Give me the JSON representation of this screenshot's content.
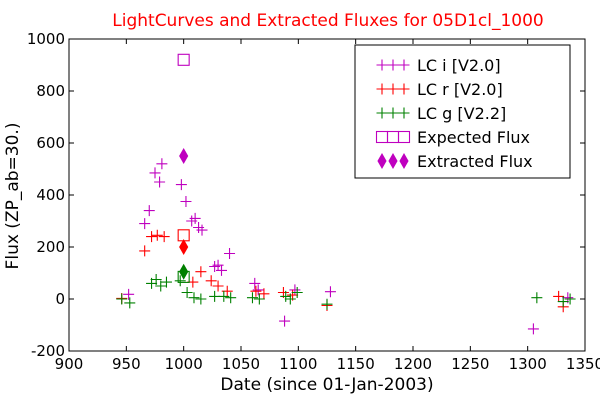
{
  "chart_data": {
    "type": "scatter",
    "title": "LightCurves and Extracted Fluxes for 05D1cl_1000",
    "xlabel": "Date (since 01-Jan-2003)",
    "ylabel": "Flux (ZP_ab=30.)",
    "xlim": [
      900,
      1350
    ],
    "ylim": [
      -200,
      1000
    ],
    "xticks": [
      900,
      950,
      1000,
      1050,
      1100,
      1150,
      1200,
      1250,
      1300,
      1350
    ],
    "yticks": [
      -200,
      0,
      200,
      400,
      600,
      800,
      1000
    ],
    "legend_position": "top-right",
    "series": [
      {
        "name": "LC i [V2.0]",
        "marker": "plus",
        "color": "#bf00bf",
        "points": [
          [
            952,
            18
          ],
          [
            966,
            290
          ],
          [
            970,
            340
          ],
          [
            975,
            485
          ],
          [
            979,
            450
          ],
          [
            981,
            520
          ],
          [
            998,
            440
          ],
          [
            1002,
            375
          ],
          [
            1007,
            300
          ],
          [
            1010,
            310
          ],
          [
            1013,
            275
          ],
          [
            1016,
            265
          ],
          [
            1027,
            125
          ],
          [
            1030,
            130
          ],
          [
            1033,
            110
          ],
          [
            1040,
            175
          ],
          [
            1062,
            60
          ],
          [
            1065,
            35
          ],
          [
            1088,
            -85
          ],
          [
            1097,
            35
          ],
          [
            1128,
            28
          ],
          [
            1305,
            -115
          ],
          [
            1335,
            5
          ]
        ]
      },
      {
        "name": "LC r [V2.0]",
        "marker": "plus",
        "color": "#ff0000",
        "points": [
          [
            946,
            2
          ],
          [
            966,
            185
          ],
          [
            972,
            240
          ],
          [
            977,
            245
          ],
          [
            983,
            240
          ],
          [
            1008,
            65
          ],
          [
            1015,
            105
          ],
          [
            1024,
            70
          ],
          [
            1030,
            50
          ],
          [
            1038,
            30
          ],
          [
            1063,
            30
          ],
          [
            1070,
            20
          ],
          [
            1087,
            25
          ],
          [
            1095,
            15
          ],
          [
            1125,
            -25
          ],
          [
            1327,
            10
          ],
          [
            1331,
            -30
          ]
        ]
      },
      {
        "name": "LC g [V2.2]",
        "marker": "plus",
        "color": "#008000",
        "points": [
          [
            946,
            0
          ],
          [
            953,
            -15
          ],
          [
            972,
            60
          ],
          [
            976,
            75
          ],
          [
            980,
            50
          ],
          [
            985,
            65
          ],
          [
            997,
            70
          ],
          [
            1003,
            25
          ],
          [
            1009,
            5
          ],
          [
            1015,
            0
          ],
          [
            1027,
            10
          ],
          [
            1035,
            10
          ],
          [
            1041,
            5
          ],
          [
            1060,
            5
          ],
          [
            1066,
            0
          ],
          [
            1089,
            10
          ],
          [
            1093,
            0
          ],
          [
            1099,
            25
          ],
          [
            1125,
            -20
          ],
          [
            1308,
            5
          ],
          [
            1331,
            -10
          ],
          [
            1337,
            0
          ]
        ]
      },
      {
        "name": "Expected Flux",
        "marker": "square",
        "color": "#bf00bf",
        "points": [
          [
            1000,
            920
          ],
          [
            1000,
            245
          ],
          [
            1000,
            85
          ]
        ],
        "point_colors": [
          "#bf00bf",
          "#ff0000",
          "#008000"
        ]
      },
      {
        "name": "Extracted Flux",
        "marker": "diamond",
        "color": "#bf00bf",
        "points": [
          [
            1000,
            550
          ],
          [
            1000,
            200
          ],
          [
            1000,
            105
          ]
        ],
        "point_colors": [
          "#bf00bf",
          "#ff0000",
          "#008000"
        ]
      }
    ]
  }
}
